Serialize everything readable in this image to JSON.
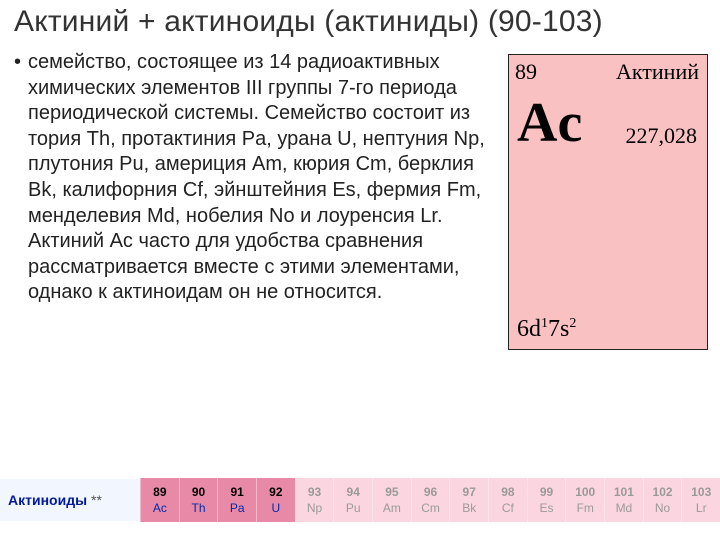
{
  "title": "Актиний + актиноиды (актиниды) (90-103)",
  "body_text": "семейство, состоящее из 14 радиоактивных химических элементов III группы 7-го периода периодической системы. Семейство состоит из тория Th, протактиния Pa, урана U, нептуния Np, плутония Pu, америция Am, кюрия Cm, берклия Bk, калифорния Cf, эйнштейния Es, фермия Fm, менделевия Md, нобелия No и лоуренсия Lr. Актиний Ac часто для удобства сравнения рассматривается вместе с этими элементами, однако к актиноидам он не относится.",
  "card": {
    "background_color": "#f9c1c1",
    "number": "89",
    "name": "Актиний",
    "symbol": "Ac",
    "mass": "227,028",
    "configuration_html": "6d<sup>1</sup>7s<sup>2</sup>"
  },
  "strip": {
    "label": "Актиноиды",
    "asterisks": "**",
    "dark_color": "#e889a8",
    "light_color": "#fbd6e0",
    "elements": [
      {
        "z": "89",
        "sym": "Ac",
        "shade": "dark"
      },
      {
        "z": "90",
        "sym": "Th",
        "shade": "dark"
      },
      {
        "z": "91",
        "sym": "Pa",
        "shade": "dark"
      },
      {
        "z": "92",
        "sym": "U",
        "shade": "dark"
      },
      {
        "z": "93",
        "sym": "Np",
        "shade": "light"
      },
      {
        "z": "94",
        "sym": "Pu",
        "shade": "light"
      },
      {
        "z": "95",
        "sym": "Am",
        "shade": "light"
      },
      {
        "z": "96",
        "sym": "Cm",
        "shade": "light"
      },
      {
        "z": "97",
        "sym": "Bk",
        "shade": "light"
      },
      {
        "z": "98",
        "sym": "Cf",
        "shade": "light"
      },
      {
        "z": "99",
        "sym": "Es",
        "shade": "light"
      },
      {
        "z": "100",
        "sym": "Fm",
        "shade": "light"
      },
      {
        "z": "101",
        "sym": "Md",
        "shade": "light"
      },
      {
        "z": "102",
        "sym": "No",
        "shade": "light"
      },
      {
        "z": "103",
        "sym": "Lr",
        "shade": "light"
      }
    ]
  }
}
